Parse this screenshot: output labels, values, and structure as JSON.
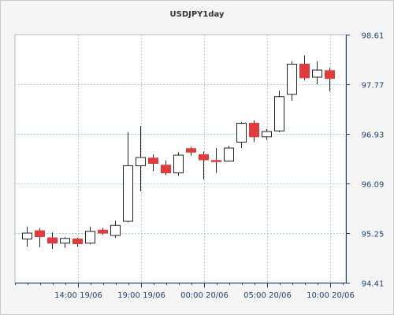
{
  "chart_data": {
    "type": "candlestick",
    "title": "USDJPY1day",
    "y_ticks": [
      "98.61",
      "97.77",
      "96.93",
      "96.09",
      "95.25",
      "94.41"
    ],
    "x_ticks": [
      "14:00 19/06",
      "19:00 19/06",
      "00:00 20/06",
      "05:00 20/06",
      "10:00 20/06"
    ],
    "ylim": [
      94.41,
      98.61
    ],
    "grid": true,
    "colors": {
      "up": "#ffffff",
      "down": "#e03c3c",
      "grid": "#9fd3d6",
      "axis": "#1f3f6d"
    },
    "candles": [
      {
        "open": 95.15,
        "high": 95.36,
        "low": 95.02,
        "close": 95.25
      },
      {
        "open": 95.29,
        "high": 95.33,
        "low": 95.01,
        "close": 95.19
      },
      {
        "open": 95.17,
        "high": 95.26,
        "low": 94.98,
        "close": 95.08
      },
      {
        "open": 95.08,
        "high": 95.18,
        "low": 95.0,
        "close": 95.16
      },
      {
        "open": 95.15,
        "high": 95.17,
        "low": 95.02,
        "close": 95.07
      },
      {
        "open": 95.08,
        "high": 95.36,
        "low": 95.06,
        "close": 95.28
      },
      {
        "open": 95.3,
        "high": 95.34,
        "low": 95.22,
        "close": 95.25
      },
      {
        "open": 95.21,
        "high": 95.46,
        "low": 95.17,
        "close": 95.38
      },
      {
        "open": 95.45,
        "high": 96.96,
        "low": 95.43,
        "close": 96.39
      },
      {
        "open": 96.39,
        "high": 97.06,
        "low": 95.96,
        "close": 96.53
      },
      {
        "open": 96.52,
        "high": 96.58,
        "low": 96.3,
        "close": 96.43
      },
      {
        "open": 96.4,
        "high": 96.48,
        "low": 96.23,
        "close": 96.27
      },
      {
        "open": 96.27,
        "high": 96.62,
        "low": 96.22,
        "close": 96.57
      },
      {
        "open": 96.68,
        "high": 96.71,
        "low": 96.56,
        "close": 96.62
      },
      {
        "open": 96.58,
        "high": 96.63,
        "low": 96.16,
        "close": 96.49
      },
      {
        "open": 96.48,
        "high": 96.69,
        "low": 96.27,
        "close": 96.47
      },
      {
        "open": 96.47,
        "high": 96.73,
        "low": 96.46,
        "close": 96.69
      },
      {
        "open": 96.79,
        "high": 97.13,
        "low": 96.69,
        "close": 97.11
      },
      {
        "open": 97.11,
        "high": 97.16,
        "low": 96.79,
        "close": 96.88
      },
      {
        "open": 96.88,
        "high": 97.01,
        "low": 96.83,
        "close": 96.97
      },
      {
        "open": 96.98,
        "high": 97.66,
        "low": 96.96,
        "close": 97.56
      },
      {
        "open": 97.6,
        "high": 98.16,
        "low": 97.49,
        "close": 98.11
      },
      {
        "open": 98.11,
        "high": 98.26,
        "low": 97.84,
        "close": 97.88
      },
      {
        "open": 97.89,
        "high": 98.16,
        "low": 97.77,
        "close": 98.01
      },
      {
        "open": 98.0,
        "high": 98.05,
        "low": 97.65,
        "close": 97.87
      }
    ]
  }
}
